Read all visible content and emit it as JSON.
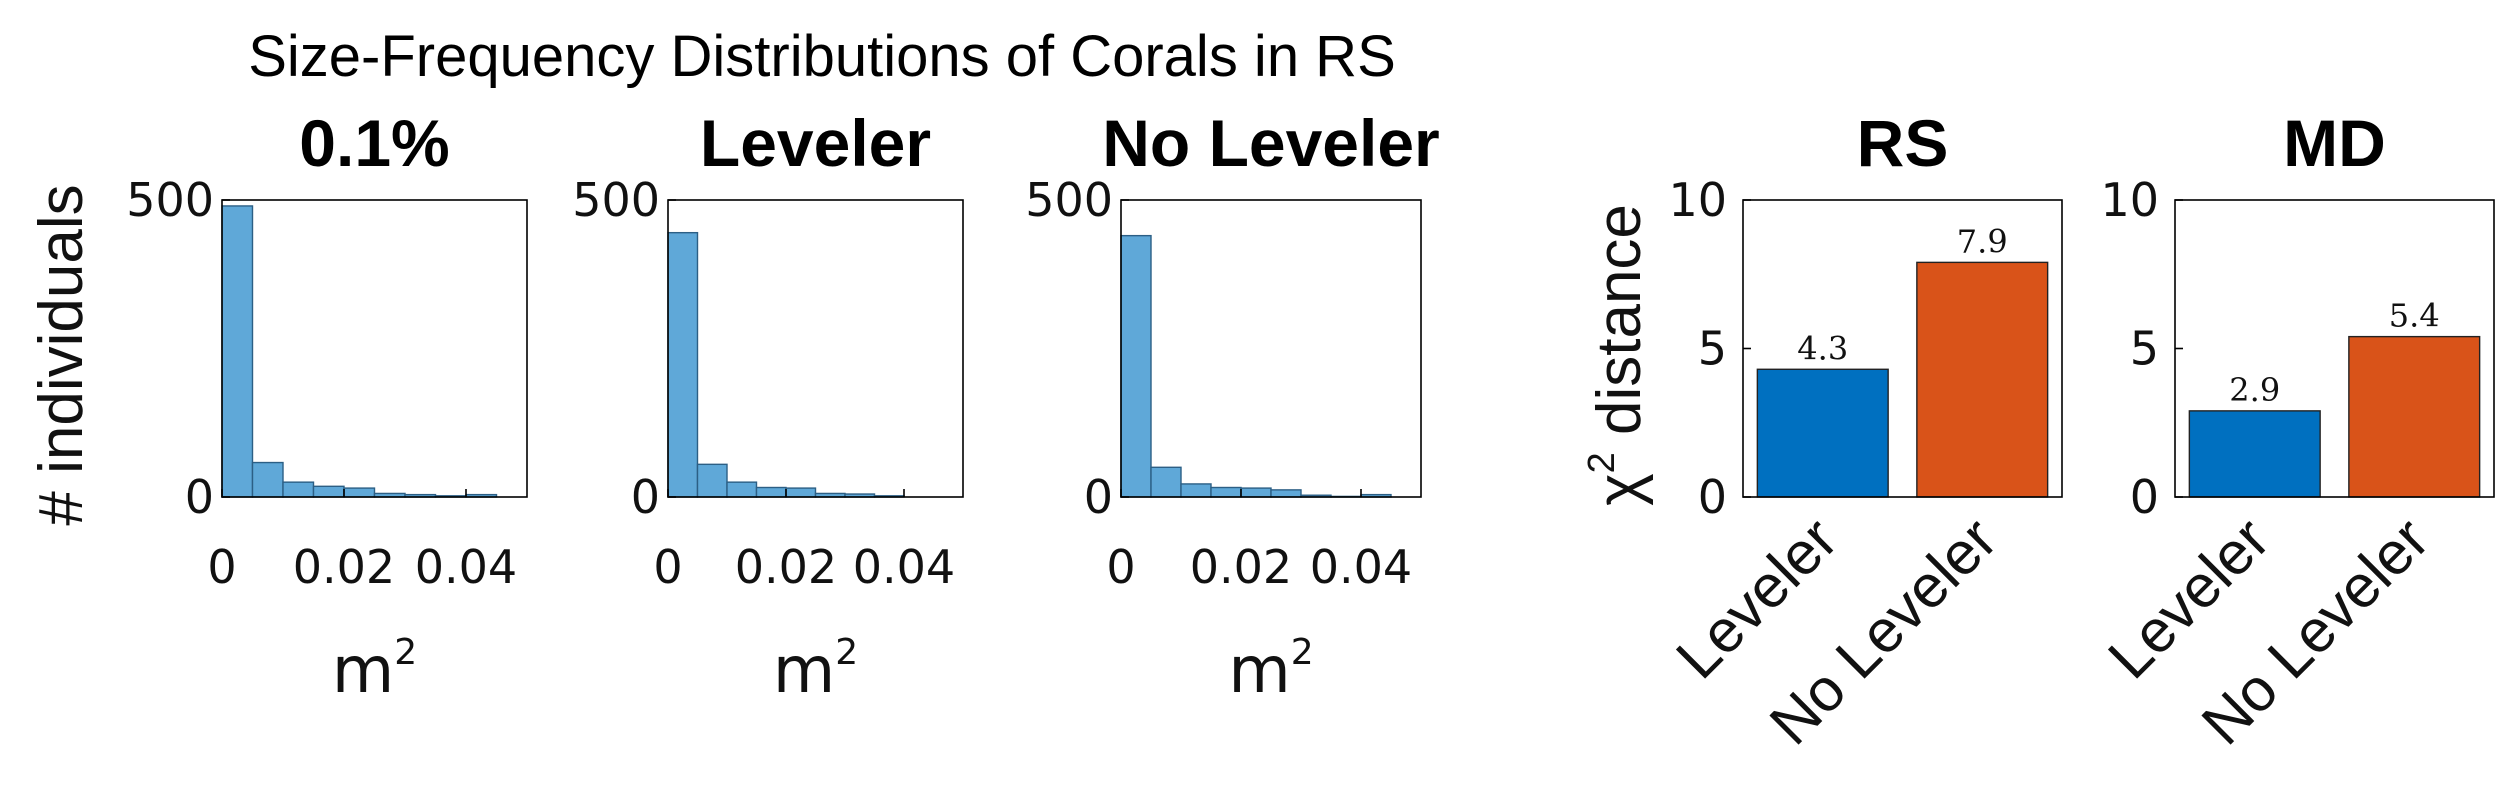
{
  "title": "Size-Frequency Distributions of Corals in RS",
  "histogram_ylabel": "# individuals",
  "histogram_xlabel": "m",
  "histogram_xlabel_sup": "2",
  "bar_ylabel": "χ",
  "bar_ylabel_sup": "2",
  "bar_ylabel_rest": " distance",
  "colors": {
    "hist": "#5fa8d8",
    "leveler": "#0070c0",
    "no_leveler": "#d95319"
  },
  "chart_data": [
    {
      "type": "bar",
      "title": "0.1%",
      "x": [
        0.0025,
        0.0075,
        0.0125,
        0.0175,
        0.0225,
        0.0275,
        0.0325,
        0.0375,
        0.0425
      ],
      "values": [
        490,
        58,
        25,
        18,
        15,
        6,
        4,
        2,
        4
      ],
      "xticks": [
        "0",
        "0.02",
        "0.04"
      ],
      "yticks": [
        "0",
        "500"
      ],
      "ylim": [
        0,
        500
      ],
      "xlim": [
        0,
        0.05
      ]
    },
    {
      "type": "bar",
      "title": "Leveler",
      "x": [
        0.0025,
        0.0075,
        0.0125,
        0.0175,
        0.0225,
        0.0275,
        0.0325,
        0.0375
      ],
      "values": [
        445,
        55,
        25,
        16,
        15,
        6,
        5,
        2
      ],
      "xticks": [
        "0",
        "0.02",
        "0.04"
      ],
      "yticks": [
        "0",
        "500"
      ],
      "ylim": [
        0,
        500
      ],
      "xlim": [
        0,
        0.05
      ]
    },
    {
      "type": "bar",
      "title": "No Leveler",
      "x": [
        0.0025,
        0.0075,
        0.0125,
        0.0175,
        0.0225,
        0.0275,
        0.0325,
        0.0375,
        0.0425
      ],
      "values": [
        440,
        50,
        22,
        16,
        15,
        12,
        3,
        1,
        4
      ],
      "xticks": [
        "0",
        "0.02",
        "0.04"
      ],
      "yticks": [
        "0",
        "500"
      ],
      "ylim": [
        0,
        500
      ],
      "xlim": [
        0,
        0.05
      ]
    },
    {
      "type": "bar",
      "title": "RS",
      "categories": [
        "Leveler",
        "No Leveler"
      ],
      "values": [
        4.3,
        7.9
      ],
      "labels": [
        "4.3",
        "7.9"
      ],
      "yticks": [
        "0",
        "5",
        "10"
      ],
      "ylim": [
        0,
        10
      ]
    },
    {
      "type": "bar",
      "title": "MD",
      "categories": [
        "Leveler",
        "No Leveler"
      ],
      "values": [
        2.9,
        5.4
      ],
      "labels": [
        "2.9",
        "5.4"
      ],
      "yticks": [
        "0",
        "5",
        "10"
      ],
      "ylim": [
        0,
        10
      ]
    }
  ]
}
